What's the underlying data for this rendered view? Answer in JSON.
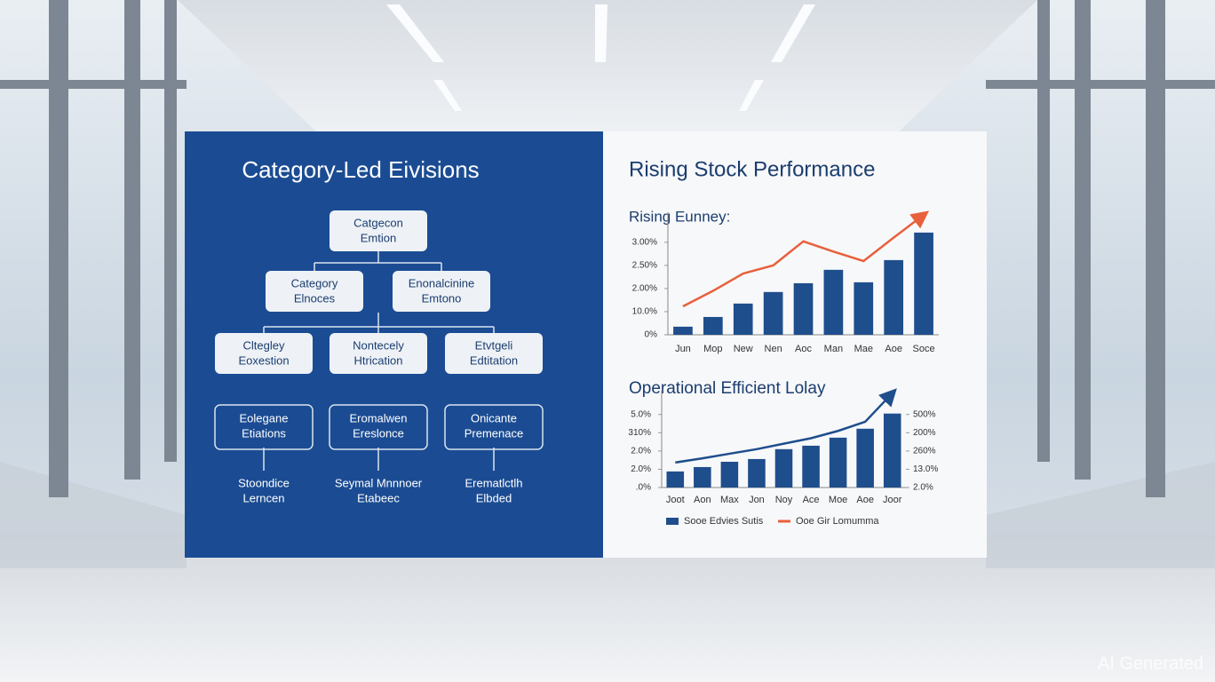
{
  "diagram": {
    "title": "Category-Led Eivisions",
    "nodes": [
      {
        "lines": [
          "Catgecon",
          "Emtion"
        ]
      },
      {
        "lines": [
          "Category",
          "Elnoces"
        ]
      },
      {
        "lines": [
          "Enonalcinine",
          "Emtono"
        ]
      },
      {
        "lines": [
          "Cltegley",
          "Eoxestion"
        ]
      },
      {
        "lines": [
          "Nontecely",
          "Htrication"
        ]
      },
      {
        "lines": [
          "Etvtgeli",
          "Edtitation"
        ]
      },
      {
        "lines": [
          "Eolegane",
          "Etiations"
        ]
      },
      {
        "lines": [
          "Eromalwen",
          "Ereslonce"
        ]
      },
      {
        "lines": [
          "Onicante",
          "Premenace"
        ]
      }
    ],
    "leaves": [
      {
        "lines": [
          "Stoondice",
          "Lerncen"
        ]
      },
      {
        "lines": [
          "Seymal Mnnnoer",
          "Etabeec"
        ]
      },
      {
        "lines": [
          "Erematlctlh",
          "Elbded"
        ]
      }
    ]
  },
  "chart_data": [
    {
      "type": "bar_line",
      "title": "Rising Stock Performance",
      "subtitle": "Rising Eunney:",
      "categories": [
        "Jun",
        "Mop",
        "New",
        "Nen",
        "Aoc",
        "Man",
        "Mae",
        "Aoe",
        "Soce"
      ],
      "series": [
        {
          "type": "bar",
          "color": "#1f4e8c",
          "values": [
            0.35,
            0.77,
            1.35,
            1.85,
            2.23,
            2.81,
            2.27,
            3.23,
            4.42
          ]
        },
        {
          "type": "line",
          "color": "#e8603c",
          "values": [
            1.23,
            1.9,
            2.65,
            3.0,
            4.04,
            3.6,
            3.19,
            4.2,
            5.19
          ]
        }
      ],
      "ylim": [
        0,
        5.3
      ],
      "yticks": [
        {
          "value": 0,
          "label": "0%"
        },
        {
          "value": 1,
          "label": "10.0%"
        },
        {
          "value": 2,
          "label": "2.00%"
        },
        {
          "value": 3,
          "label": "2.50%"
        },
        {
          "value": 4,
          "label": "3.00%"
        }
      ]
    },
    {
      "type": "bar_line",
      "title": "Operational Efficient Lolay",
      "categories": [
        "Joot",
        "Aon",
        "Max",
        "Jon",
        "Noy",
        "Ace",
        "Moe",
        "Aoe",
        "Joor"
      ],
      "series": [
        {
          "type": "bar",
          "name": "Sooe Edvies Sutis",
          "color": "#1f4e8c",
          "values": [
            0.88,
            1.12,
            1.41,
            1.56,
            2.1,
            2.29,
            2.73,
            3.22,
            4.05
          ]
        },
        {
          "type": "line",
          "name": "Ooe Gir Lomumma",
          "color": "#1f4e8c",
          "legend_color": "#e8603c",
          "values": [
            1.37,
            1.6,
            1.85,
            2.1,
            2.4,
            2.7,
            3.1,
            3.6,
            5.17
          ]
        }
      ],
      "ylim": [
        0,
        5.3
      ],
      "yticks": [
        {
          "value": 0,
          "label": ".0%"
        },
        {
          "value": 1,
          "label": "2.0%"
        },
        {
          "value": 2,
          "label": "2.0%"
        },
        {
          "value": 3,
          "label": "310%"
        },
        {
          "value": 4,
          "label": "5.0%"
        }
      ],
      "y2lim": [
        0,
        5.3
      ],
      "y2ticks": [
        {
          "value": 0,
          "label": "2.0%"
        },
        {
          "value": 1,
          "label": "13.0%"
        },
        {
          "value": 2,
          "label": "260%"
        },
        {
          "value": 3,
          "label": "200%"
        },
        {
          "value": 4,
          "label": "500%"
        }
      ]
    }
  ],
  "watermark": "AI Generated"
}
